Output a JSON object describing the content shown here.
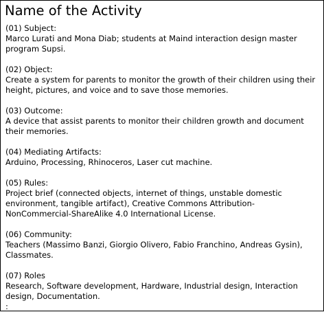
{
  "title": "Name of the Activity",
  "sections": [
    {
      "heading": "(01) Subject:",
      "body": "Marco Lurati and Mona Diab; students at Maind interaction design master program Supsi."
    },
    {
      "heading": "(02) Object:",
      "body": "Create a system for parents to monitor the growth of their children using their height, pictures, and voice and to save those memories."
    },
    {
      "heading": "(03) Outcome:",
      "body": "A device that assist parents to monitor their children growth and document their memories."
    },
    {
      "heading": "(04) Mediating Artifacts:",
      "body": "Arduino, Processing, Rhinoceros, Laser cut machine."
    },
    {
      "heading": "(05) Rules:",
      "body": "Project brief (connected objects, internet of things, unstable domestic environment, tangible artifact), Creative Commons Attribution-NonCommercial-ShareAlike 4.0 International License."
    },
    {
      "heading": "(06) Community:",
      "body": "Teachers (Massimo Banzi, Giorgio Olivero, Fabio Franchino, Andreas Gysin), Classmates."
    },
    {
      "heading": "(07) Roles",
      "body": "Research, Software development, Hardware, Industrial design, Interaction design, Documentation."
    }
  ],
  "trailing_mark": ":"
}
